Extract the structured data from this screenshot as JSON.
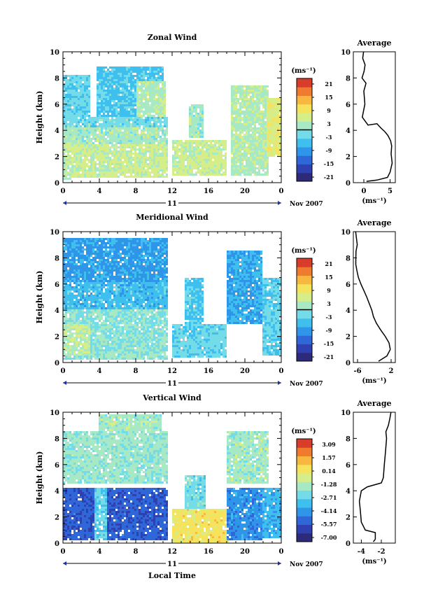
{
  "colors": {
    "cmap": [
      "#2d2a7a",
      "#2f41b0",
      "#2f66d8",
      "#2f95e9",
      "#3fbfee",
      "#74dbe9",
      "#a7e9c4",
      "#d6ee8a",
      "#f5e35d",
      "#f8b73f",
      "#f07b2f",
      "#d83c2a"
    ],
    "ink": "#000000",
    "nodata": "#ffffff"
  },
  "chart_data": [
    {
      "type": "heatmap",
      "title": "Zonal Wind",
      "ylabel": "Height (km)",
      "xlabel": "",
      "xlim": [
        0,
        24
      ],
      "ylim": [
        0,
        10
      ],
      "x_ticks": [
        "0",
        "4",
        "8",
        "12",
        "16",
        "20",
        "0"
      ],
      "y_ticks": [
        "0",
        "2",
        "4",
        "6",
        "8",
        "10"
      ],
      "date_axis": {
        "day": "11",
        "month_year": "Nov 2007"
      },
      "colorbar": {
        "unit": "(ms⁻¹)",
        "labels": [
          "21",
          "15",
          "9",
          "3",
          "-3",
          "-9",
          "-15",
          "-21"
        ],
        "range": [
          -24,
          24
        ],
        "zero_line": true
      },
      "regimes": [
        {
          "x0": 0,
          "x1": 1.0,
          "z0": 0.2,
          "z1": 3.0,
          "value": 3
        },
        {
          "x0": 0,
          "x1": 11.5,
          "z0": 0.4,
          "z1": 3.0,
          "value": 5
        },
        {
          "x0": 0,
          "x1": 11.5,
          "z0": 3.0,
          "z1": 4.2,
          "value": 2
        },
        {
          "x0": 0,
          "x1": 11.5,
          "z0": 4.2,
          "z1": 5.0,
          "value": -2
        },
        {
          "x0": 0,
          "x1": 3.0,
          "z0": 5.0,
          "z1": 8.2,
          "value": -3
        },
        {
          "x0": 3.8,
          "x1": 11.0,
          "z0": 5.0,
          "z1": 8.8,
          "value": -5
        },
        {
          "x0": 8.0,
          "x1": 11.2,
          "z0": 5.0,
          "z1": 7.8,
          "value": 3
        },
        {
          "x0": 12.0,
          "x1": 18.0,
          "z0": 0.5,
          "z1": 3.2,
          "value": 5
        },
        {
          "x0": 13.8,
          "x1": 15.4,
          "z0": 3.5,
          "z1": 6.0,
          "value": 2
        },
        {
          "x0": 18.5,
          "x1": 22.5,
          "z0": 0.5,
          "z1": 7.5,
          "value": 3
        },
        {
          "x0": 22.5,
          "x1": 24,
          "z0": 2.0,
          "z1": 6.5,
          "value": 7
        }
      ],
      "average_profile": {
        "title": "Average",
        "xlabel": "(ms⁻¹)",
        "x_ticks": [
          "0",
          "5"
        ],
        "xlim": [
          -2,
          6
        ],
        "y_ticks": [
          "0",
          "2",
          "4",
          "6",
          "8",
          "10"
        ],
        "ylim": [
          0,
          10
        ],
        "x": [
          0.5,
          2.5,
          4.5,
          5.0,
          5.4,
          5.2,
          5.3,
          5.1,
          4.6,
          4.0,
          3.2,
          2.5,
          0.8,
          -0.3,
          0.2,
          0.0,
          0.3,
          -0.4,
          0.0,
          0.3,
          -0.2,
          0.0
        ],
        "y": [
          0.1,
          0.2,
          0.4,
          0.8,
          1.5,
          2.2,
          2.8,
          3.2,
          3.6,
          3.9,
          4.2,
          4.5,
          4.4,
          5.0,
          6.0,
          7.0,
          7.6,
          8.0,
          8.5,
          9.0,
          9.5,
          10.0
        ]
      }
    },
    {
      "type": "heatmap",
      "title": "Meridional Wind",
      "ylabel": "Height (km)",
      "xlabel": "",
      "xlim": [
        0,
        24
      ],
      "ylim": [
        0,
        10
      ],
      "x_ticks": [
        "0",
        "4",
        "8",
        "12",
        "16",
        "20",
        "0"
      ],
      "y_ticks": [
        "0",
        "2",
        "4",
        "6",
        "8",
        "10"
      ],
      "date_axis": {
        "day": "11",
        "month_year": "Nov 2007"
      },
      "colorbar": {
        "unit": "(ms⁻¹)",
        "labels": [
          "21",
          "15",
          "9",
          "3",
          "-3",
          "-9",
          "-15",
          "-21"
        ],
        "range": [
          -24,
          24
        ],
        "zero_line": true
      },
      "regimes": [
        {
          "x0": 0,
          "x1": 11.5,
          "z0": 0.2,
          "z1": 4.0,
          "value": 0
        },
        {
          "x0": 0,
          "x1": 3.0,
          "z0": 0.5,
          "z1": 3.0,
          "value": 4
        },
        {
          "x0": 0,
          "x1": 11.5,
          "z0": 4.0,
          "z1": 6.2,
          "value": -6
        },
        {
          "x0": 0,
          "x1": 11.5,
          "z0": 6.2,
          "z1": 9.5,
          "value": -9
        },
        {
          "x0": 12.0,
          "x1": 18.0,
          "z0": 0.4,
          "z1": 3.0,
          "value": -3
        },
        {
          "x0": 13.5,
          "x1": 15.4,
          "z0": 3.0,
          "z1": 6.5,
          "value": -5
        },
        {
          "x0": 18.0,
          "x1": 22.0,
          "z0": 3.0,
          "z1": 8.5,
          "value": -8
        },
        {
          "x0": 22.0,
          "x1": 24,
          "z0": 0.5,
          "z1": 6.5,
          "value": -4
        }
      ],
      "average_profile": {
        "title": "Average",
        "xlabel": "(ms⁻¹)",
        "x_ticks": [
          "-6",
          "2"
        ],
        "xlim": [
          -7,
          3
        ],
        "y_ticks": [
          "0",
          "2",
          "4",
          "6",
          "8",
          "10"
        ],
        "ylim": [
          0,
          10
        ],
        "x": [
          -1.0,
          1.0,
          1.8,
          1.5,
          0.6,
          -0.5,
          -1.5,
          -2.2,
          -2.6,
          -3.2,
          -3.8,
          -4.5,
          -5.2,
          -5.8,
          -6.2,
          -6.4,
          -6.3,
          -6.5,
          -6.2,
          -6.4
        ],
        "y": [
          0.1,
          0.5,
          1.0,
          1.5,
          2.0,
          2.5,
          3.0,
          3.5,
          4.0,
          4.5,
          5.0,
          5.5,
          6.0,
          6.5,
          7.0,
          7.5,
          8.0,
          8.5,
          9.0,
          10.0
        ]
      }
    },
    {
      "type": "heatmap",
      "title": "Vertical Wind",
      "ylabel": "Height (km)",
      "xlabel": "Local Time",
      "xlim": [
        0,
        24
      ],
      "ylim": [
        0,
        10
      ],
      "x_ticks": [
        "0",
        "4",
        "8",
        "12",
        "16",
        "20",
        "0"
      ],
      "y_ticks": [
        "0",
        "2",
        "4",
        "6",
        "8",
        "10"
      ],
      "date_axis": {
        "day": "11",
        "month_year": "Nov 2007"
      },
      "colorbar": {
        "unit": "(ms⁻¹)",
        "labels": [
          "3.09",
          "1.57",
          "0.14",
          "-1.28",
          "-2.71",
          "-4.14",
          "-5.57",
          "-7.00"
        ],
        "range": [
          -8.4,
          4.2
        ],
        "zero_line": false
      },
      "regimes": [
        {
          "x0": 0,
          "x1": 11.5,
          "z0": 0.2,
          "z1": 4.3,
          "value": -6.0
        },
        {
          "x0": 3.5,
          "x1": 4.8,
          "z0": 0.2,
          "z1": 4.3,
          "value": -3.0
        },
        {
          "x0": 0,
          "x1": 11.5,
          "z0": 4.6,
          "z1": 8.5,
          "value": -1.8
        },
        {
          "x0": 4.0,
          "x1": 10.8,
          "z0": 8.5,
          "z1": 9.8,
          "value": -1.5
        },
        {
          "x0": 12.0,
          "x1": 18.2,
          "z0": 0.1,
          "z1": 2.6,
          "value": 0.4
        },
        {
          "x0": 13.5,
          "x1": 15.6,
          "z0": 2.6,
          "z1": 5.2,
          "value": -2.6
        },
        {
          "x0": 18.0,
          "x1": 22.0,
          "z0": 0.2,
          "z1": 4.3,
          "value": -4.8
        },
        {
          "x0": 18.0,
          "x1": 22.5,
          "z0": 4.6,
          "z1": 8.5,
          "value": -1.6
        },
        {
          "x0": 22.0,
          "x1": 24,
          "z0": 0.3,
          "z1": 4.3,
          "value": -4.0
        }
      ],
      "average_profile": {
        "title": "Average",
        "xlabel": "(ms⁻¹)",
        "x_ticks": [
          "-4",
          "-2"
        ],
        "xlim": [
          -4.8,
          -0.6
        ],
        "y_ticks": [
          "0",
          "2",
          "4",
          "6",
          "8",
          "10"
        ],
        "ylim": [
          0,
          10
        ],
        "x": [
          -2.8,
          -2.6,
          -2.6,
          -3.6,
          -4.0,
          -4.1,
          -4.2,
          -4.0,
          -3.4,
          -2.0,
          -1.8,
          -1.7,
          -1.6,
          -1.5,
          -1.5,
          -1.3,
          -1.2,
          -1.0
        ],
        "y": [
          0.1,
          0.3,
          0.8,
          1.0,
          1.6,
          2.5,
          3.2,
          4.0,
          4.3,
          4.6,
          5.0,
          6.0,
          7.0,
          8.0,
          8.5,
          9.0,
          9.5,
          10.0
        ]
      }
    }
  ]
}
